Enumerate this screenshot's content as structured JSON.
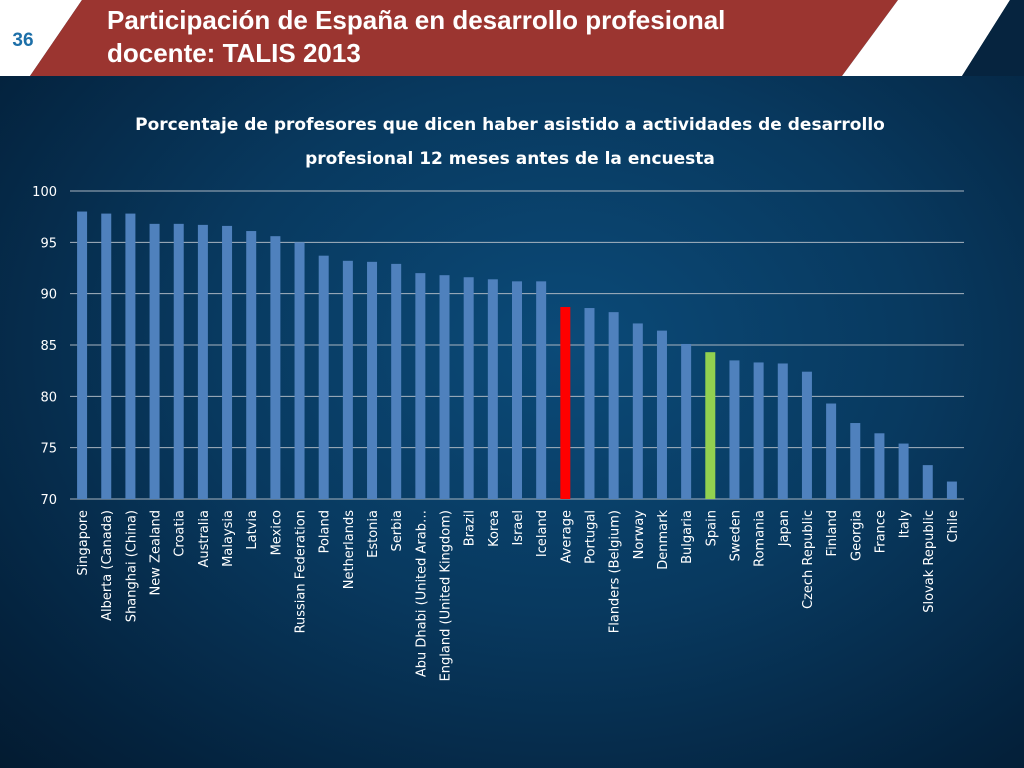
{
  "slide": {
    "number": "36",
    "title_line1": "Participación de España en desarrollo profesional",
    "title_line2": "docente: TALIS 2013"
  },
  "colors": {
    "header_band": "#9b3530",
    "bar_default": "#4f81bd",
    "bar_average": "#ff0000",
    "bar_spain": "#92d050"
  },
  "chart_data": {
    "type": "bar",
    "title_line1": "Porcentaje de profesores que dicen haber asistido a actividades de desarrollo",
    "title_line2": "profesional 12 meses antes de la encuesta",
    "xlabel": "",
    "ylabel": "",
    "ylim": [
      70,
      100
    ],
    "yticks": [
      "100",
      "95",
      "90",
      "85",
      "80",
      "75",
      "70"
    ],
    "grid": true,
    "categories": [
      "Singapore",
      "Alberta (Canada)",
      "Shanghai (China)",
      "New Zealand",
      "Croatia",
      "Australia",
      "Malaysia",
      "Latvia",
      "Mexico",
      "Russian Federation",
      "Poland",
      "Netherlands",
      "Estonia",
      "Serbia",
      "Abu Dhabi (United Arab…",
      "England (United Kingdom)",
      "Brazil",
      "Korea",
      "Israel",
      "Iceland",
      "Average",
      "Portugal",
      "Flanders (Belgium)",
      "Norway",
      "Denmark",
      "Bulgaria",
      "Spain",
      "Sweden",
      "Romania",
      "Japan",
      "Czech Republic",
      "Finland",
      "Georgia",
      "France",
      "Italy",
      "Slovak Republic",
      "Chile"
    ],
    "values": [
      98.0,
      97.8,
      97.8,
      96.8,
      96.8,
      96.7,
      96.6,
      96.1,
      95.6,
      95.0,
      93.7,
      93.2,
      93.1,
      92.9,
      92.0,
      91.8,
      91.6,
      91.4,
      91.2,
      91.2,
      88.7,
      88.6,
      88.2,
      87.1,
      86.4,
      85.1,
      84.3,
      83.5,
      83.3,
      83.2,
      82.4,
      79.3,
      77.4,
      76.4,
      75.4,
      73.3,
      71.7
    ],
    "highlight": {
      "Average": "red",
      "Spain": "green"
    }
  }
}
